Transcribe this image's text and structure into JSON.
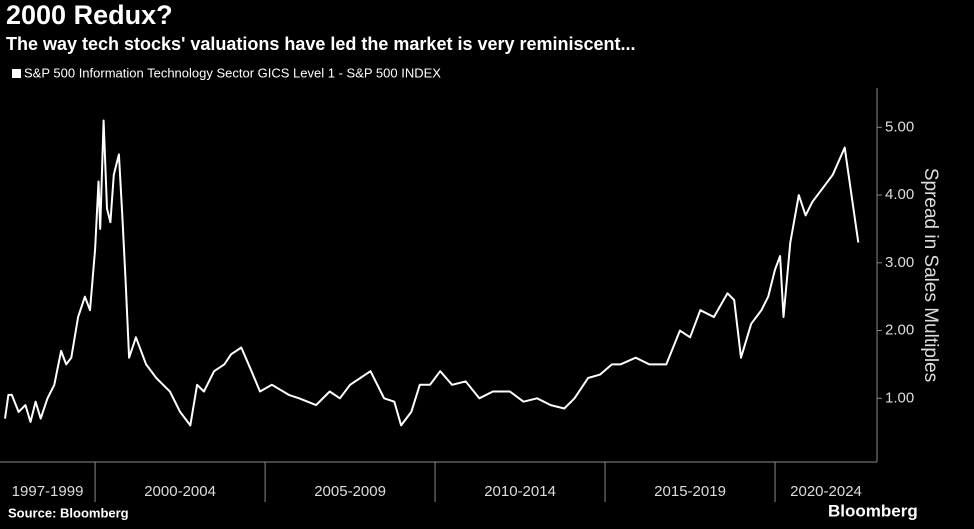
{
  "chart_data": {
    "type": "line",
    "title": "2000 Redux?",
    "subtitle": "The way tech stocks' valuations have led the market is very reminiscent...",
    "y_label": "Spread in Sales Multiples",
    "source": "Source: Bloomberg",
    "brand": "Bloomberg",
    "categories": [
      "1997-1999",
      "2000-2004",
      "2005-2009",
      "2010-2014",
      "2015-2019",
      "2020-2024"
    ],
    "xticks": [
      2000,
      2005,
      2010,
      2015,
      2020
    ],
    "xlim": [
      1997.35,
      2022.94
    ],
    "ylim": [
      0.06,
      5.58
    ],
    "yticks": [
      {
        "value": 1,
        "label": "1.00"
      },
      {
        "value": 2,
        "label": "2.00"
      },
      {
        "value": 3,
        "label": "3.00"
      },
      {
        "value": 4,
        "label": "4.00"
      },
      {
        "value": 5,
        "label": "5.00"
      }
    ],
    "legend": "top-left",
    "series": [
      {
        "name": "S&P 500 Information Technology Sector GICS Level 1 - S&P 500 INDEX",
        "color": "#ffffff",
        "x": [
          1997.35,
          1997.45,
          1997.55,
          1997.75,
          1997.95,
          1998.1,
          1998.25,
          1998.4,
          1998.6,
          1998.8,
          1999.0,
          1999.15,
          1999.3,
          1999.5,
          1999.7,
          1999.85,
          2000.0,
          2000.1,
          2000.15,
          2000.25,
          2000.35,
          2000.45,
          2000.55,
          2000.7,
          2000.8,
          2000.9,
          2001.0,
          2001.2,
          2001.5,
          2001.8,
          2002.0,
          2002.2,
          2002.5,
          2002.8,
          2003.0,
          2003.2,
          2003.5,
          2003.8,
          2004.0,
          2004.3,
          2004.6,
          2004.85,
          2005.2,
          2005.7,
          2006.0,
          2006.5,
          2006.9,
          2007.2,
          2007.5,
          2007.8,
          2008.1,
          2008.5,
          2008.8,
          2009.0,
          2009.3,
          2009.55,
          2009.85,
          2010.15,
          2010.5,
          2010.9,
          2011.3,
          2011.7,
          2012.2,
          2012.6,
          2013.0,
          2013.4,
          2013.8,
          2014.1,
          2014.5,
          2014.85,
          2015.2,
          2015.45,
          2015.9,
          2016.3,
          2016.8,
          2017.2,
          2017.5,
          2017.8,
          2018.2,
          2018.6,
          2018.8,
          2019.0,
          2019.3,
          2019.6,
          2019.8,
          2020.0,
          2020.15,
          2020.25,
          2020.45,
          2020.7,
          2020.9,
          2021.1,
          2021.4,
          2021.7,
          2022.05,
          2022.25,
          2022.45
        ],
        "values": [
          0.7,
          1.05,
          1.05,
          0.8,
          0.9,
          0.65,
          0.95,
          0.7,
          1.0,
          1.2,
          1.7,
          1.5,
          1.6,
          2.2,
          2.5,
          2.3,
          3.2,
          4.2,
          3.5,
          5.1,
          3.8,
          3.6,
          4.3,
          4.6,
          3.7,
          2.7,
          1.6,
          1.9,
          1.5,
          1.3,
          1.2,
          1.1,
          0.8,
          0.6,
          1.2,
          1.1,
          1.4,
          1.5,
          1.65,
          1.75,
          1.4,
          1.1,
          1.2,
          1.05,
          1.0,
          0.9,
          1.1,
          1.0,
          1.2,
          1.3,
          1.4,
          1.0,
          0.95,
          0.6,
          0.8,
          1.2,
          1.2,
          1.4,
          1.2,
          1.25,
          1.0,
          1.1,
          1.1,
          0.95,
          1.0,
          0.9,
          0.85,
          1.0,
          1.3,
          1.35,
          1.5,
          1.5,
          1.6,
          1.5,
          1.5,
          2.0,
          1.9,
          2.3,
          2.2,
          2.55,
          2.45,
          1.6,
          2.1,
          2.3,
          2.5,
          2.9,
          3.1,
          2.2,
          3.3,
          4.0,
          3.7,
          3.9,
          4.1,
          4.3,
          4.7,
          4.0,
          3.3
        ]
      }
    ]
  }
}
